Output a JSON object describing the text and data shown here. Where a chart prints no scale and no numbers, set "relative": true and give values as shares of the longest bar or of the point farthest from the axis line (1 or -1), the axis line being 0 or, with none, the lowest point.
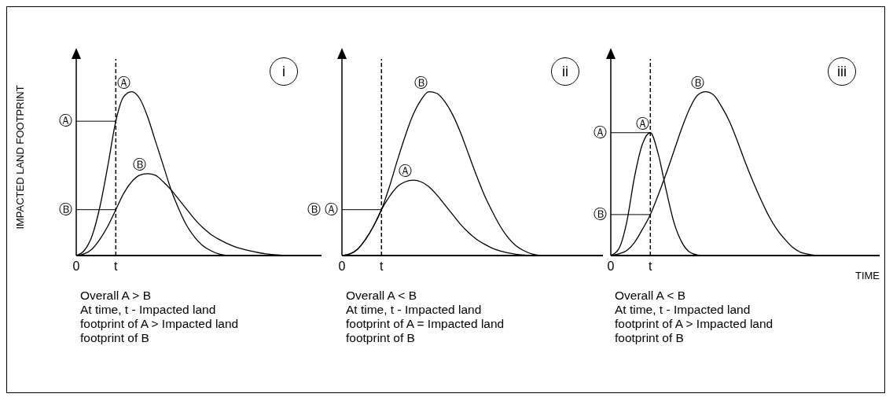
{
  "chart_data": [
    {
      "type": "line",
      "title": "i",
      "ylabel": "IMPACTED LAND FOOTPRINT",
      "relative": true,
      "marker": "none",
      "line_style": "solid",
      "categories": [
        "0",
        null,
        null,
        null,
        null,
        "t",
        null,
        null,
        null,
        null,
        null,
        null,
        null,
        null,
        null,
        null,
        null,
        null,
        null,
        null,
        null,
        null,
        null,
        null,
        null,
        null,
        null,
        null,
        null,
        null,
        null,
        null
      ],
      "series": [
        {
          "name": "Ⓐ",
          "color": "#000000",
          "values": [
            0,
            0.03,
            0.12,
            0.3,
            0.55,
            0.82,
            0.97,
            1,
            0.96,
            0.85,
            0.7,
            0.55,
            0.4,
            0.28,
            0.18,
            0.11,
            0.06,
            0.03,
            0.01,
            0,
            null,
            null,
            null,
            null,
            null,
            null,
            null,
            null,
            null,
            null,
            null,
            null
          ]
        },
        {
          "name": "Ⓑ",
          "color": "#000000",
          "values": [
            0,
            0.01,
            0.04,
            0.1,
            0.18,
            0.28,
            0.38,
            0.45,
            0.49,
            0.5,
            0.49,
            0.45,
            0.4,
            0.34,
            0.28,
            0.22,
            0.17,
            0.13,
            0.1,
            0.075,
            0.055,
            0.04,
            0.028,
            0.018,
            0.01,
            0.005,
            0.002,
            0,
            null,
            null,
            null,
            null
          ]
        }
      ],
      "ref_lines": [
        {
          "axis": "x",
          "value": "t",
          "line_style": "dashed"
        },
        {
          "axis": "y",
          "value": 0.82,
          "label": "Ⓐ"
        },
        {
          "axis": "y",
          "value": 0.28,
          "label": "Ⓑ"
        }
      ],
      "annotations": [
        "Overall A > B",
        "At time, t - Impacted land footprint of A > Impacted land footprint of B"
      ]
    },
    {
      "type": "line",
      "title": "ii",
      "relative": true,
      "marker": "none",
      "line_style": "solid",
      "categories": [
        "0",
        null,
        null,
        null,
        null,
        "t",
        null,
        null,
        null,
        null,
        null,
        null,
        null,
        null,
        null,
        null,
        null,
        null,
        null,
        null,
        null,
        null,
        null,
        null,
        null,
        null,
        null,
        null,
        null,
        null,
        null,
        null,
        null,
        null
      ],
      "series": [
        {
          "name": "Ⓑ",
          "color": "#000000",
          "values": [
            0,
            0.01,
            0.04,
            0.1,
            0.18,
            0.28,
            0.42,
            0.58,
            0.73,
            0.86,
            0.95,
            1,
            0.99,
            0.94,
            0.86,
            0.75,
            0.62,
            0.49,
            0.37,
            0.27,
            0.18,
            0.11,
            0.06,
            0.03,
            0.01,
            0,
            null,
            null,
            null,
            null,
            null,
            null,
            null,
            null
          ]
        },
        {
          "name": "Ⓐ",
          "color": "#000000",
          "values": [
            0,
            0.01,
            0.04,
            0.1,
            0.18,
            0.28,
            0.36,
            0.42,
            0.45,
            0.46,
            0.45,
            0.42,
            0.37,
            0.31,
            0.25,
            0.19,
            0.14,
            0.1,
            0.07,
            0.045,
            0.028,
            0.016,
            0.008,
            0.003,
            0,
            null,
            null,
            null,
            null,
            null,
            null,
            null,
            null,
            null
          ]
        }
      ],
      "ref_lines": [
        {
          "axis": "x",
          "value": "t",
          "line_style": "dashed"
        },
        {
          "axis": "y",
          "value": 0.28,
          "label": "Ⓑ Ⓐ"
        }
      ],
      "annotations": [
        "Overall A < B",
        "At time, t - Impacted land footprint of A = Impacted land footprint of B"
      ]
    },
    {
      "type": "line",
      "title": "iii",
      "xlabel": "TIME",
      "relative": true,
      "marker": "none",
      "line_style": "solid",
      "categories": [
        "0",
        null,
        null,
        null,
        null,
        "t",
        null,
        null,
        null,
        null,
        null,
        null,
        null,
        null,
        null,
        null,
        null,
        null,
        null,
        null,
        null,
        null,
        null,
        null,
        null,
        null,
        null,
        null,
        null,
        null,
        null,
        null,
        null,
        null,
        null
      ],
      "series": [
        {
          "name": "Ⓐ",
          "color": "#000000",
          "values": [
            0,
            0.04,
            0.2,
            0.48,
            0.68,
            0.75,
            0.62,
            0.4,
            0.2,
            0.08,
            0.02,
            0.003,
            0,
            null,
            null,
            null,
            null,
            null,
            null,
            null,
            null,
            null,
            null,
            null,
            null,
            null,
            null,
            null,
            null,
            null,
            null,
            null,
            null,
            null,
            null
          ]
        },
        {
          "name": "Ⓑ",
          "color": "#000000",
          "values": [
            0,
            0.01,
            0.03,
            0.08,
            0.16,
            0.25,
            0.37,
            0.5,
            0.64,
            0.78,
            0.9,
            0.98,
            1,
            0.98,
            0.91,
            0.82,
            0.7,
            0.57,
            0.45,
            0.34,
            0.24,
            0.16,
            0.1,
            0.05,
            0.02,
            0.008,
            0,
            null,
            null,
            null,
            null,
            null,
            null,
            null,
            null
          ]
        }
      ],
      "ref_lines": [
        {
          "axis": "x",
          "value": "t",
          "line_style": "dashed"
        },
        {
          "axis": "y",
          "value": 0.75,
          "label": "Ⓐ"
        },
        {
          "axis": "y",
          "value": 0.25,
          "label": "Ⓑ"
        }
      ],
      "annotations": [
        "Overall A < B",
        "At time, t - Impacted land footprint of A > Impacted land footprint of B"
      ]
    }
  ]
}
